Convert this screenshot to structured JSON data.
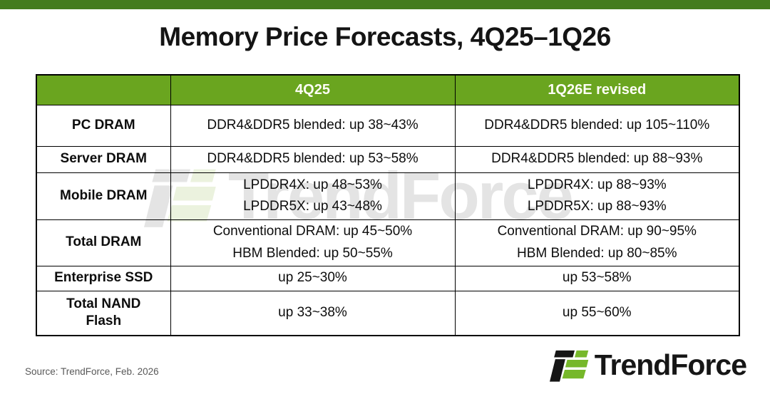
{
  "chart_data": {
    "type": "table",
    "title": "Memory Price Forecasts, 4Q25–1Q26",
    "columns": [
      "",
      "4Q25",
      "1Q26E revised"
    ],
    "rows": [
      {
        "label": "PC DRAM",
        "values": [
          "DDR4&DDR5 blended: up 38~43%",
          "DDR4&DDR5 blended: up 105~110%"
        ]
      },
      {
        "label": "Server DRAM",
        "values": [
          "DDR4&DDR5 blended: up 53~58%",
          "DDR4&DDR5 blended: up 88~93%"
        ]
      },
      {
        "label": "Mobile DRAM",
        "values": [
          "LPDDR4X: up 48~53%\nLPDDR5X: up 43~48%",
          "LPDDR4X: up 88~93%\nLPDDR5X: up 88~93%"
        ]
      },
      {
        "label": "Total DRAM",
        "values": [
          "Conventional DRAM: up 45~50%\nHBM Blended: up 50~55%",
          "Conventional DRAM: up 90~95%\nHBM Blended: up 80~85%"
        ]
      },
      {
        "label": "Enterprise SSD",
        "values": [
          "up 25~30%",
          "up 53~58%"
        ]
      },
      {
        "label": "Total NAND\nFlash",
        "values": [
          "up 33~38%",
          "up 55~60%"
        ]
      }
    ],
    "source": "Source: TrendForce, Feb. 2026",
    "legend_position": "none",
    "grid": "table-borders"
  },
  "branding": {
    "logo_text": "TrendForce",
    "logo_icon": "trendforce-7f-icon",
    "watermark_text": "TrendForce"
  },
  "colors": {
    "top_bar_green": "#447c1e",
    "table_header_green": "#6aa51f",
    "header_text": "#fdfdf5",
    "logo_green": "#76b82a",
    "logo_black": "#161616",
    "table_border": "#000000",
    "source_text_gray": "#595959",
    "watermark_gray": "#cecece",
    "watermark_green": "#dbe9c4"
  }
}
